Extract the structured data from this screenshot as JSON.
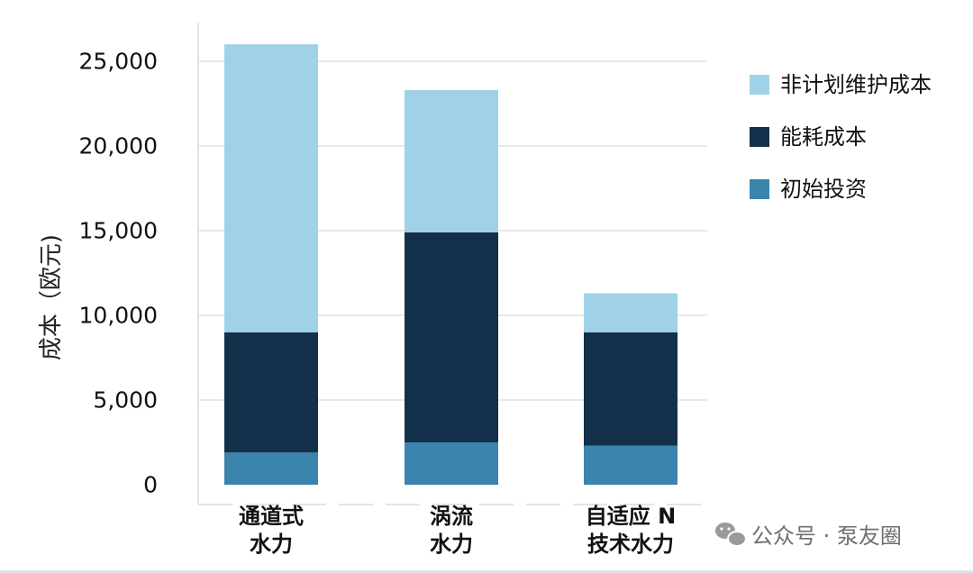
{
  "chart_data": {
    "type": "bar",
    "stacked": true,
    "ylabel": "成本（欧元)",
    "categories": [
      [
        "通道式",
        "水力"
      ],
      [
        "涡流",
        "水力"
      ],
      [
        "自适应 N",
        "技术水力"
      ]
    ],
    "ylim": [
      0,
      27500
    ],
    "yticks": [
      0,
      5000,
      10000,
      15000,
      20000,
      25000
    ],
    "ytick_labels": [
      "0",
      "5,000",
      "10,000",
      "15,000",
      "20,000",
      "25,000"
    ],
    "grid": true,
    "legend_position": "right",
    "series": [
      {
        "name": "初始投资",
        "color": "#3a84ad",
        "values": [
          1900,
          2500,
          2300
        ]
      },
      {
        "name": "能耗成本",
        "color": "#13304a",
        "values": [
          7100,
          12400,
          6700
        ]
      },
      {
        "name": "非计划维护成本",
        "color": "#9fd2e8",
        "values": [
          17000,
          8400,
          2300
        ]
      }
    ]
  },
  "watermark": "公众号 · 泵友圈"
}
